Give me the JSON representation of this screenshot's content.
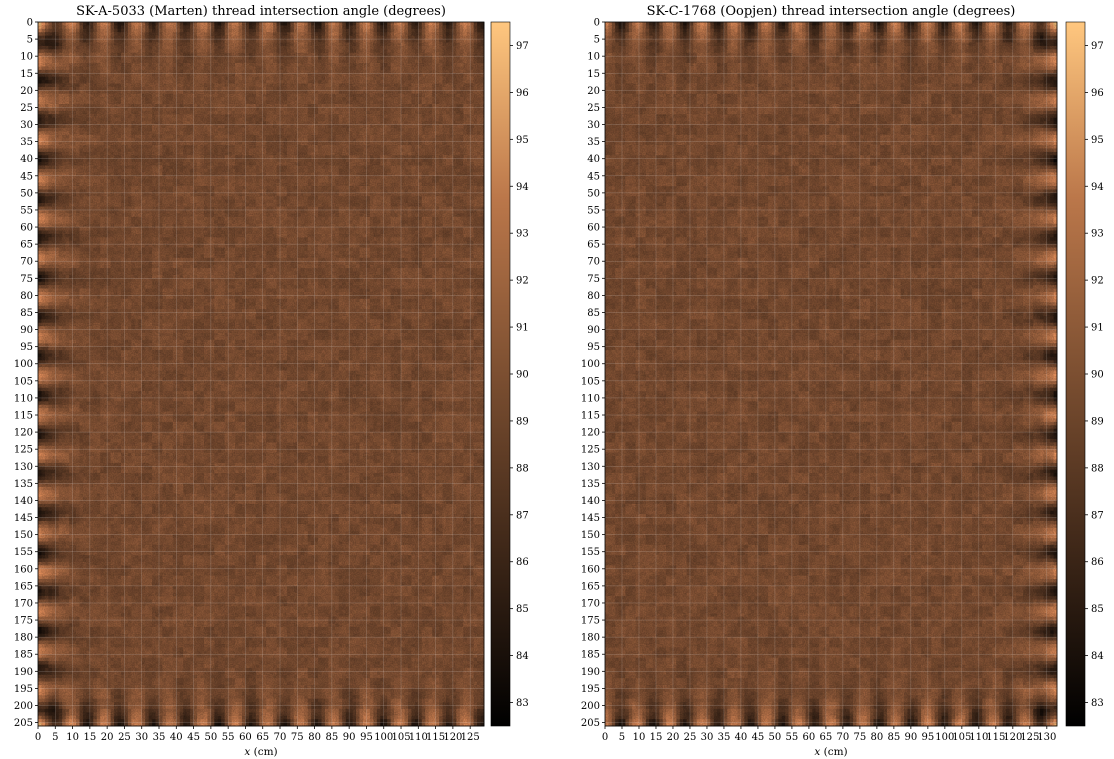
{
  "chart_data": [
    {
      "type": "heatmap",
      "title": "SK-A-5033 (Marten) thread intersection angle (degrees)",
      "xlabel_italic": "x",
      "xlabel_unit": " (cm)",
      "ylabel": "",
      "xlim": [
        0,
        129
      ],
      "ylim": [
        0,
        206
      ],
      "x_ticks": [
        0,
        5,
        10,
        15,
        20,
        25,
        30,
        35,
        40,
        45,
        50,
        55,
        60,
        65,
        70,
        75,
        80,
        85,
        90,
        95,
        100,
        105,
        110,
        115,
        120,
        125
      ],
      "y_ticks": [
        0,
        5,
        10,
        15,
        20,
        25,
        30,
        35,
        40,
        45,
        50,
        55,
        60,
        65,
        70,
        75,
        80,
        85,
        90,
        95,
        100,
        105,
        110,
        115,
        120,
        125,
        130,
        135,
        140,
        145,
        150,
        155,
        160,
        165,
        170,
        175,
        180,
        185,
        190,
        195,
        200,
        205
      ],
      "colorbar": {
        "min": 82.5,
        "max": 97.5,
        "ticks": [
          83,
          84,
          85,
          86,
          87,
          88,
          89,
          90,
          91,
          92,
          93,
          94,
          95,
          96,
          97
        ],
        "colormap": "copper"
      },
      "cusping_edges": [
        "left",
        "top",
        "bottom"
      ],
      "grid": true
    },
    {
      "type": "heatmap",
      "title": "SK-C-1768 (Oopjen) thread intersection angle (degrees)",
      "xlabel_italic": "x",
      "xlabel_unit": " (cm)",
      "ylabel": "",
      "xlim": [
        0,
        133
      ],
      "ylim": [
        0,
        206
      ],
      "x_ticks": [
        0,
        5,
        10,
        15,
        20,
        25,
        30,
        35,
        40,
        45,
        50,
        55,
        60,
        65,
        70,
        75,
        80,
        85,
        90,
        95,
        100,
        105,
        110,
        115,
        120,
        125,
        130
      ],
      "y_ticks": [
        0,
        5,
        10,
        15,
        20,
        25,
        30,
        35,
        40,
        45,
        50,
        55,
        60,
        65,
        70,
        75,
        80,
        85,
        90,
        95,
        100,
        105,
        110,
        115,
        120,
        125,
        130,
        135,
        140,
        145,
        150,
        155,
        160,
        165,
        170,
        175,
        180,
        185,
        190,
        195,
        200,
        205
      ],
      "colorbar": {
        "min": 82.5,
        "max": 97.5,
        "ticks": [
          83,
          84,
          85,
          86,
          87,
          88,
          89,
          90,
          91,
          92,
          93,
          94,
          95,
          96,
          97
        ],
        "colormap": "copper"
      },
      "cusping_edges": [
        "right",
        "top",
        "bottom"
      ],
      "grid": true
    }
  ]
}
